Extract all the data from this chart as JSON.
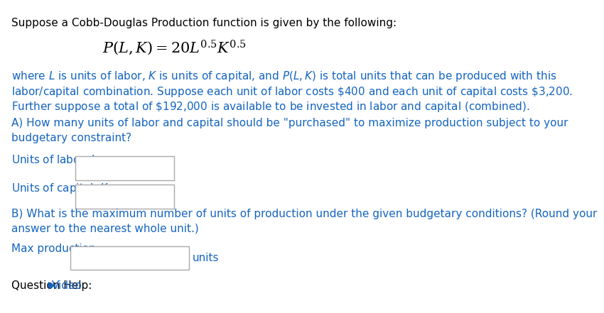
{
  "bg_color": "#ffffff",
  "text_color": "#000000",
  "blue_color": "#1565c0",
  "title_line": "Suppose a Cobb-Douglas Production function is given by the following:",
  "body_line1": "where $L$ is units of labor, $K$ is units of capital, and $P(L,K)$ is total units that can be produced with this",
  "body_line2": "labor/capital combination. Suppose each unit of labor costs $\\$$400 and each unit of capital costs $\\$$3,200.",
  "body_line3": "Further suppose a total of $\\$$192,000 is available to be invested in labor and capital (combined).",
  "partA_line1": "A) How many units of labor and capital should be \"purchased\" to maximize production subject to your",
  "partA_line2": "budgetary constraint?",
  "labor_label": "Units of labor, $L$ =",
  "capital_label": "Units of capital, $K$ =",
  "partB_line1": "B) What is the maximum number of units of production under the given budgetary conditions? (Round your",
  "partB_line2": "answer to the nearest whole unit.)",
  "maxprod_label": "Max production =",
  "units_text": "units",
  "question_help": "Question Help:",
  "video_text": "Video",
  "font_size_title": 11,
  "font_size_body": 11,
  "font_size_formula": 15
}
